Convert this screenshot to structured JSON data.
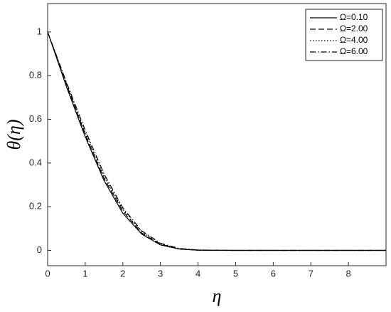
{
  "chart_data": {
    "type": "line",
    "x_label": "η",
    "y_label": "θ(η)",
    "x": [
      0,
      0.5,
      1,
      1.5,
      2,
      2.5,
      3,
      3.5,
      4,
      5,
      9
    ],
    "series": [
      {
        "name": "Ω=0.10",
        "color": "#000000",
        "dash": "solid",
        "values": [
          1,
          0.75,
          0.52,
          0.32,
          0.17,
          0.075,
          0.025,
          0.006,
          0.001,
          0,
          0
        ]
      },
      {
        "name": "Ω=2.00",
        "color": "#000000",
        "dash": "dashed",
        "values": [
          1,
          0.76,
          0.53,
          0.33,
          0.18,
          0.08,
          0.028,
          0.007,
          0.001,
          0,
          0
        ]
      },
      {
        "name": "Ω=4.00",
        "color": "#000000",
        "dash": "dotted",
        "values": [
          1,
          0.765,
          0.54,
          0.34,
          0.188,
          0.085,
          0.03,
          0.008,
          0.002,
          0,
          0
        ]
      },
      {
        "name": "Ω=6.00",
        "color": "#000000",
        "dash": "dashdot",
        "values": [
          1,
          0.77,
          0.55,
          0.35,
          0.195,
          0.09,
          0.033,
          0.009,
          0.002,
          0,
          0
        ]
      }
    ],
    "xlim": [
      0,
      9
    ],
    "xticks": [
      0,
      1,
      2,
      3,
      4,
      5,
      6,
      7,
      8
    ],
    "ylim": [
      -0.07,
      1.13
    ],
    "yticks": [
      0,
      0.2,
      0.4,
      0.6,
      0.8,
      1
    ],
    "grid": false,
    "legend": "top-right"
  }
}
